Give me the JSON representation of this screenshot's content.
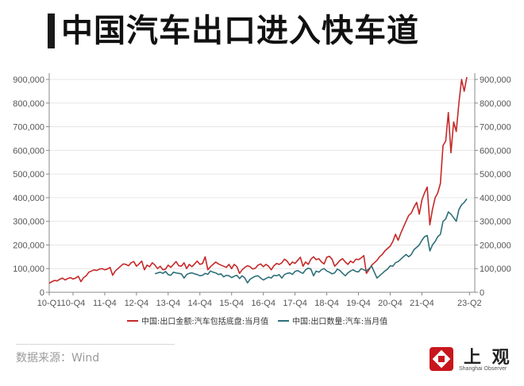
{
  "title": "中国汽车出口进入快车道",
  "source": "数据来源：Wind",
  "brand": {
    "name": "上 观",
    "en": "Shanghai Observer",
    "color": "#c8161d"
  },
  "chart_data": {
    "type": "line",
    "x_tick_labels": [
      "10-Q1",
      "10-Q4",
      "11-Q4",
      "12-Q4",
      "13-Q4",
      "14-Q4",
      "15-Q4",
      "16-Q4",
      "17-Q4",
      "18-Q4",
      "19-Q4",
      "20-Q4",
      "21-Q4",
      "23-Q2"
    ],
    "y_ticks_left": [
      "0",
      "100,000",
      "200,000",
      "300,000",
      "400,000",
      "500,000",
      "600,000",
      "700,000",
      "800,000",
      "900,000"
    ],
    "y_ticks_right": [
      "0",
      "100,000",
      "200,000",
      "300,000",
      "400,000",
      "500,000",
      "600,000",
      "700,000",
      "800,000",
      "900,000"
    ],
    "ylim": [
      0,
      900000
    ],
    "grid": true,
    "legend_position": "bottom",
    "series": [
      {
        "name": "中国:出口金额:汽车包括底盘:当月值",
        "color": "#c62828",
        "start_month": "2010-01",
        "values": [
          38000,
          45000,
          50000,
          48000,
          55000,
          60000,
          52000,
          58000,
          62000,
          56000,
          60000,
          68000,
          45000,
          62000,
          70000,
          85000,
          90000,
          95000,
          92000,
          98000,
          100000,
          95000,
          98000,
          105000,
          72000,
          90000,
          100000,
          110000,
          120000,
          118000,
          112000,
          125000,
          130000,
          110000,
          120000,
          132000,
          95000,
          115000,
          108000,
          125000,
          115000,
          100000,
          110000,
          95000,
          98000,
          115000,
          105000,
          118000,
          130000,
          112000,
          110000,
          125000,
          100000,
          118000,
          108000,
          120000,
          132000,
          118000,
          122000,
          150000,
          95000,
          108000,
          118000,
          128000,
          120000,
          115000,
          110000,
          105000,
          118000,
          100000,
          118000,
          108000,
          80000,
          95000,
          105000,
          112000,
          108000,
          98000,
          102000,
          115000,
          120000,
          108000,
          118000,
          110000,
          95000,
          112000,
          122000,
          118000,
          125000,
          140000,
          132000,
          115000,
          128000,
          122000,
          135000,
          148000,
          110000,
          128000,
          118000,
          140000,
          150000,
          138000,
          142000,
          128000,
          120000,
          148000,
          152000,
          140000,
          110000,
          122000,
          135000,
          142000,
          128000,
          118000,
          132000,
          125000,
          140000,
          138000,
          145000,
          155000,
          80000,
          95000,
          115000,
          125000,
          135000,
          150000,
          160000,
          175000,
          185000,
          195000,
          215000,
          245000,
          220000,
          250000,
          275000,
          300000,
          325000,
          335000,
          360000,
          380000,
          330000,
          390000,
          420000,
          445000,
          285000,
          350000,
          400000,
          420000,
          460000,
          620000,
          640000,
          760000,
          590000,
          720000,
          680000,
          800000,
          900000,
          850000,
          910000
        ]
      },
      {
        "name": "中国:出口数量:汽车:当月值",
        "color": "#2e6f78",
        "start_month": "2013-05",
        "values": [
          78000,
          82000,
          85000,
          80000,
          88000,
          75000,
          72000,
          85000,
          82000,
          80000,
          78000,
          60000,
          75000,
          80000,
          82000,
          78000,
          75000,
          70000,
          72000,
          80000,
          76000,
          90000,
          85000,
          82000,
          75000,
          78000,
          65000,
          72000,
          70000,
          62000,
          68000,
          72000,
          58000,
          70000,
          60000,
          40000,
          55000,
          62000,
          68000,
          70000,
          60000,
          52000,
          58000,
          64000,
          60000,
          72000,
          70000,
          75000,
          60000,
          75000,
          80000,
          82000,
          76000,
          88000,
          92000,
          85000,
          80000,
          95000,
          102000,
          98000,
          70000,
          90000,
          85000,
          95000,
          100000,
          90000,
          85000,
          78000,
          82000,
          98000,
          92000,
          80000,
          70000,
          82000,
          90000,
          95000,
          88000,
          86000,
          100000,
          95000,
          90000,
          100000,
          110000,
          85000,
          60000,
          70000,
          80000,
          90000,
          98000,
          112000,
          110000,
          125000,
          130000,
          140000,
          150000,
          160000,
          150000,
          160000,
          180000,
          190000,
          200000,
          220000,
          235000,
          240000,
          175000,
          200000,
          215000,
          235000,
          245000,
          300000,
          310000,
          340000,
          330000,
          315000,
          300000,
          350000,
          370000,
          380000,
          395000
        ]
      }
    ]
  }
}
